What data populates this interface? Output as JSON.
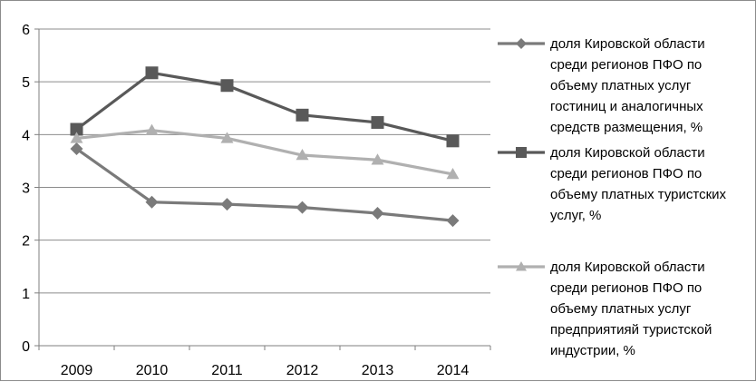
{
  "chart_data": {
    "type": "line",
    "categories": [
      "2009",
      "2010",
      "2011",
      "2012",
      "2013",
      "2014"
    ],
    "ylim": [
      0,
      6
    ],
    "yticks": [
      0,
      1,
      2,
      3,
      4,
      5,
      6
    ],
    "grid": true,
    "legend_position": "right",
    "series": [
      {
        "name": "доля Кировской области среди регионов ПФО по объему платных услуг гостиниц и аналогичных средств размещения, %",
        "name_lines": [
          "доля Кировской области",
          "среди регионов ПФО по",
          "объему платных услуг",
          "гостиниц и аналогичных",
          "средств размещения, %"
        ],
        "values": [
          3.73,
          2.72,
          2.68,
          2.62,
          2.51,
          2.37
        ],
        "color": "#7a7a7a",
        "marker": "diamond"
      },
      {
        "name": "доля Кировской области среди регионов ПФО по объему платных туристских услуг, %",
        "name_lines": [
          "доля Кировской области",
          "среди регионов ПФО по",
          "объему платных туристских",
          "услуг, %"
        ],
        "values": [
          4.1,
          5.17,
          4.93,
          4.37,
          4.23,
          3.88
        ],
        "color": "#595959",
        "marker": "square"
      },
      {
        "name": "доля Кировской области среди регионов ПФО по объему платных услуг предприятияй туристской индустрии, %",
        "name_lines": [
          "доля Кировской области",
          "среди регионов ПФО по",
          "объему платных услуг",
          "предприятияй туристской",
          "индустрии, %"
        ],
        "values": [
          3.93,
          4.08,
          3.93,
          3.61,
          3.52,
          3.25
        ],
        "color": "#b0b0b0",
        "marker": "triangle"
      }
    ]
  }
}
